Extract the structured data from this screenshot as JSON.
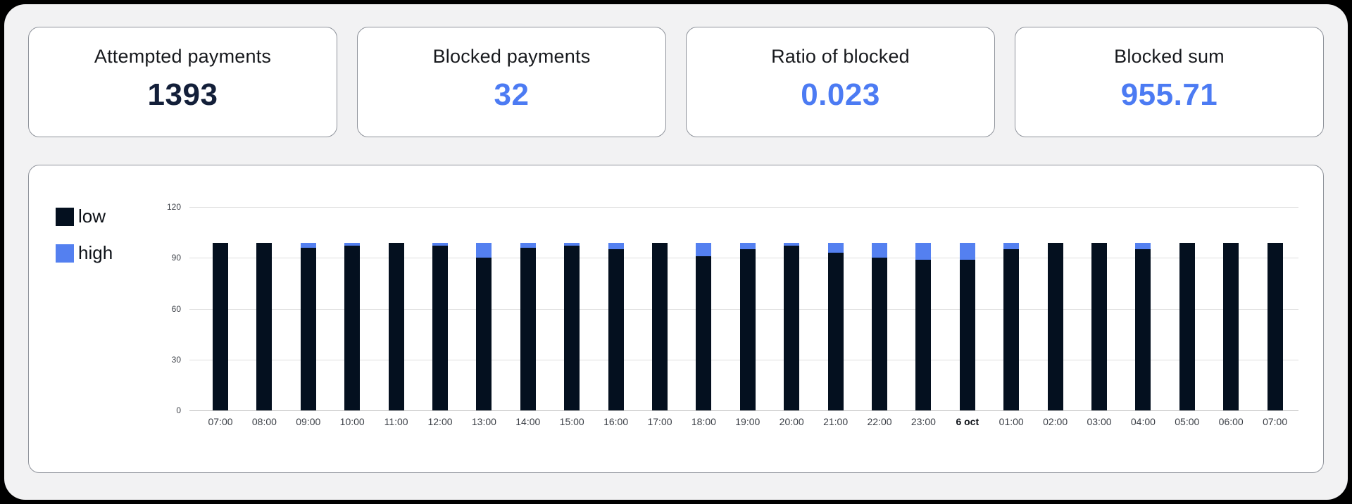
{
  "cards": [
    {
      "title": "Attempted payments",
      "value": "1393",
      "value_color": "#131f39"
    },
    {
      "title": "Blocked payments",
      "value": "32",
      "value_color": "#4c7bf3"
    },
    {
      "title": "Ratio of blocked",
      "value": "0.023",
      "value_color": "#4c7bf3"
    },
    {
      "title": "Blocked sum",
      "value": "955.71",
      "value_color": "#4c7bf3"
    }
  ],
  "chart_data": {
    "type": "bar",
    "stacked": true,
    "title": "",
    "xlabel": "",
    "ylabel": "",
    "ylim": [
      0,
      120
    ],
    "yticks": [
      0,
      30,
      60,
      90,
      120
    ],
    "grid": true,
    "legend_position": "left",
    "bold_category": "6 oct",
    "categories": [
      "07:00",
      "08:00",
      "09:00",
      "10:00",
      "11:00",
      "12:00",
      "13:00",
      "14:00",
      "15:00",
      "16:00",
      "17:00",
      "18:00",
      "19:00",
      "20:00",
      "21:00",
      "22:00",
      "23:00",
      "6 oct",
      "01:00",
      "02:00",
      "03:00",
      "04:00",
      "05:00",
      "06:00",
      "07:00"
    ],
    "series": [
      {
        "name": "low",
        "color": "#04101f",
        "values": [
          99,
          99,
          96,
          97,
          99,
          97,
          90,
          96,
          97,
          95,
          99,
          91,
          95,
          97,
          93,
          90,
          89,
          89,
          95,
          99,
          99,
          95,
          99,
          99,
          99
        ]
      },
      {
        "name": "high",
        "color": "#5480f0",
        "values": [
          0,
          0,
          3,
          2,
          0,
          2,
          9,
          3,
          2,
          4,
          0,
          8,
          4,
          2,
          6,
          9,
          10,
          10,
          4,
          0,
          0,
          4,
          0,
          0,
          0
        ]
      }
    ]
  },
  "colors": {
    "page_background": "#f2f2f3",
    "outer_background": "#000000",
    "card_background": "#ffffff",
    "card_border": "#8f939b",
    "gridline": "#dedede",
    "axis_line": "#c4c4c4",
    "accent_blue": "#4c7bf3",
    "accent_navy": "#04101f"
  }
}
